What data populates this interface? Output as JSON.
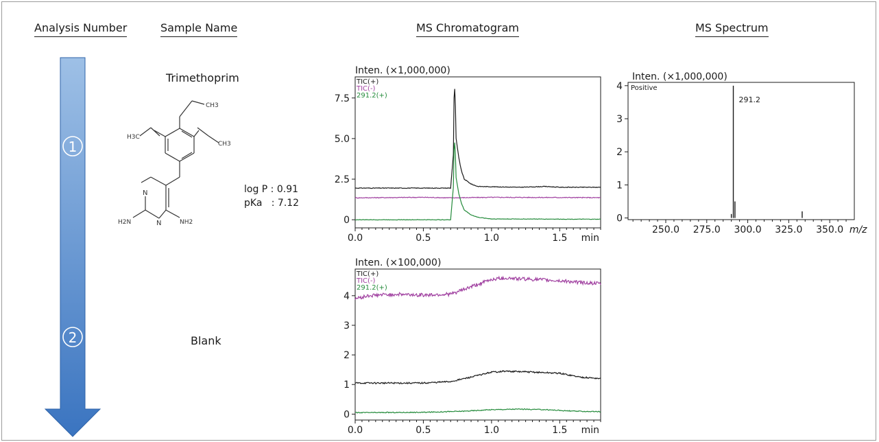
{
  "headers": {
    "analysis_number": "Analysis Number",
    "sample_name": "Sample Name",
    "ms_chromatogram": "MS Chromatogram",
    "ms_spectrum": "MS Spectrum"
  },
  "steps": [
    "1",
    "2"
  ],
  "samples": {
    "s1": {
      "name": "Trimethoprim",
      "logp": "log P : 0.91",
      "pka": "pKa   : 7.12",
      "structure_labels": [
        "CH3",
        "CH3",
        "H3C",
        "N",
        "N",
        "H2N",
        "NH2"
      ]
    },
    "s2": {
      "name": "Blank"
    }
  },
  "colors": {
    "tic_pos": "#1a1a1a",
    "tic_neg": "#a040a0",
    "sim": "#238a3a",
    "arrow_top": "#9ec0e6",
    "arrow_bottom": "#3a74c0"
  },
  "chart_data": [
    {
      "type": "line",
      "y_caption": "Inten. (×1,000,000)",
      "xunit": "min",
      "xlim": [
        0,
        1.8
      ],
      "ylim": [
        -0.5,
        8.8
      ],
      "xticks": [
        "0.0",
        "0.5",
        "1.0",
        "1.5"
      ],
      "yticks": [
        "0",
        "2.5",
        "5.0",
        "7.5"
      ],
      "series": [
        {
          "name": "TIC(+)",
          "color": "#1a1a1a",
          "x": [
            0,
            0.7,
            0.72,
            0.725,
            0.73,
            0.735,
            0.74,
            0.76,
            0.78,
            0.8,
            0.85,
            0.9,
            1.2,
            1.4,
            1.5,
            1.8
          ],
          "y": [
            1.95,
            1.95,
            4.0,
            7.5,
            8.05,
            7.0,
            5.0,
            3.8,
            3.0,
            2.5,
            2.2,
            2.05,
            2.0,
            2.05,
            2.0,
            2.0
          ]
        },
        {
          "name": "TIC(-)",
          "color": "#a040a0",
          "x": [
            0,
            0.5,
            0.7,
            1.0,
            1.5,
            1.8
          ],
          "y": [
            1.35,
            1.38,
            1.35,
            1.38,
            1.37,
            1.36
          ]
        },
        {
          "name": "291.2(+)",
          "color": "#238a3a",
          "x": [
            0,
            0.7,
            0.72,
            0.725,
            0.73,
            0.735,
            0.74,
            0.76,
            0.78,
            0.8,
            0.85,
            0.9,
            1.0,
            1.8
          ],
          "y": [
            0.0,
            0.0,
            2.0,
            4.3,
            4.75,
            4.0,
            2.6,
            1.6,
            1.0,
            0.6,
            0.3,
            0.15,
            0.05,
            0.03
          ]
        }
      ]
    },
    {
      "type": "line",
      "y_caption": "Inten. (×1,000,000)",
      "xunit": "m/z",
      "annotation": "Positive",
      "peak_label": "291.2",
      "xlim": [
        227,
        365
      ],
      "ylim": [
        -0.05,
        4.1
      ],
      "xticks": [
        "250.0",
        "275.0",
        "300.0",
        "325.0",
        "350.0"
      ],
      "yticks": [
        "0",
        "1",
        "2",
        "3",
        "4"
      ],
      "peaks": [
        {
          "mz": 290.0,
          "intensity": 0.12
        },
        {
          "mz": 291.2,
          "intensity": 4.0
        },
        {
          "mz": 292.2,
          "intensity": 0.5
        },
        {
          "mz": 333.2,
          "intensity": 0.2
        }
      ]
    },
    {
      "type": "line",
      "y_caption": "Inten. (×100,000)",
      "xunit": "min",
      "xlim": [
        0,
        1.8
      ],
      "ylim": [
        -0.2,
        4.9
      ],
      "xticks": [
        "0.0",
        "0.5",
        "1.0",
        "1.5"
      ],
      "yticks": [
        "0",
        "1",
        "2",
        "3",
        "4"
      ],
      "series": [
        {
          "name": "TIC(+)",
          "color": "#1a1a1a",
          "x": [
            0,
            0.2,
            0.3,
            0.5,
            0.7,
            0.85,
            1.0,
            1.1,
            1.3,
            1.5,
            1.65,
            1.8
          ],
          "y": [
            1.05,
            1.05,
            1.05,
            1.05,
            1.1,
            1.25,
            1.42,
            1.45,
            1.42,
            1.38,
            1.25,
            1.2
          ]
        },
        {
          "name": "TIC(-)",
          "color": "#a040a0",
          "x": [
            0,
            0.1,
            0.3,
            0.5,
            0.7,
            0.85,
            1.0,
            1.1,
            1.3,
            1.5,
            1.65,
            1.8
          ],
          "y": [
            3.9,
            4.0,
            4.05,
            4.02,
            4.05,
            4.3,
            4.55,
            4.6,
            4.55,
            4.5,
            4.45,
            4.4
          ]
        },
        {
          "name": "291.2(+)",
          "color": "#238a3a",
          "x": [
            0,
            0.5,
            0.8,
            1.0,
            1.2,
            1.4,
            1.6,
            1.8
          ],
          "y": [
            0.05,
            0.06,
            0.1,
            0.15,
            0.17,
            0.15,
            0.1,
            0.08
          ]
        }
      ]
    }
  ]
}
